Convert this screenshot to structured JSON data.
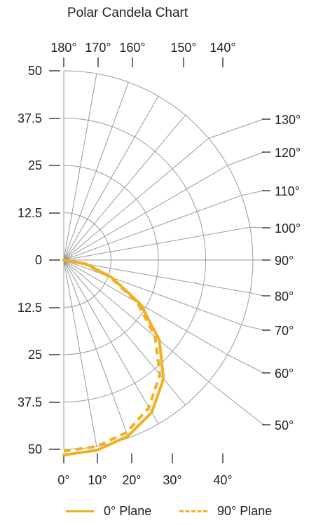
{
  "chart_data": {
    "type": "line",
    "polar": true,
    "title": "Polar Candela Chart",
    "radial_ticks": [
      {
        "label": "50",
        "r": 50
      },
      {
        "label": "37.5",
        "r": 37.5
      },
      {
        "label": "25",
        "r": 25
      },
      {
        "label": "12.5",
        "r": 12.5
      },
      {
        "label": "0",
        "r": 0
      },
      {
        "label": "12.5",
        "r": 12.5
      },
      {
        "label": "25",
        "r": 25
      },
      {
        "label": "37.5",
        "r": 37.5
      },
      {
        "label": "50",
        "r": 50
      }
    ],
    "top_angle_labels": [
      {
        "label": "180°",
        "angle": 180
      },
      {
        "label": "170°",
        "angle": 170
      },
      {
        "label": "160°",
        "angle": 160
      },
      {
        "label": "150°",
        "angle": 150
      },
      {
        "label": "140°",
        "angle": 140
      }
    ],
    "right_angle_labels": [
      {
        "label": "130°",
        "angle": 130
      },
      {
        "label": "120°",
        "angle": 120
      },
      {
        "label": "110°",
        "angle": 110
      },
      {
        "label": "100°",
        "angle": 100
      },
      {
        "label": "90°",
        "angle": 90
      },
      {
        "label": "80°",
        "angle": 80
      },
      {
        "label": "70°",
        "angle": 70
      },
      {
        "label": "60°",
        "angle": 60
      },
      {
        "label": "50°",
        "angle": 50
      }
    ],
    "bottom_angle_labels": [
      {
        "label": "0°",
        "angle": 0
      },
      {
        "label": "10°",
        "angle": 10
      },
      {
        "label": "20°",
        "angle": 20
      },
      {
        "label": "30°",
        "angle": 30
      },
      {
        "label": "40°",
        "angle": 40
      }
    ],
    "grid": true,
    "rlim": [
      0,
      50
    ],
    "series": [
      {
        "name": "0° Plane",
        "style": "solid",
        "color": "#F0B020",
        "points": [
          {
            "angle": 0,
            "value": 51.5
          },
          {
            "angle": 10,
            "value": 51
          },
          {
            "angle": 20,
            "value": 49.5
          },
          {
            "angle": 30,
            "value": 46.5
          },
          {
            "angle": 40,
            "value": 41
          },
          {
            "angle": 50,
            "value": 33
          },
          {
            "angle": 60,
            "value": 23.5
          },
          {
            "angle": 70,
            "value": 13.5
          },
          {
            "angle": 80,
            "value": 6
          },
          {
            "angle": 90,
            "value": 0
          }
        ]
      },
      {
        "name": "90° Plane",
        "style": "dashed",
        "color": "#F0B020",
        "points": [
          {
            "angle": 0,
            "value": 50.5
          },
          {
            "angle": 10,
            "value": 50
          },
          {
            "angle": 20,
            "value": 48.5
          },
          {
            "angle": 30,
            "value": 45
          },
          {
            "angle": 40,
            "value": 39.5
          },
          {
            "angle": 50,
            "value": 31.5
          },
          {
            "angle": 60,
            "value": 22.5
          },
          {
            "angle": 70,
            "value": 13
          },
          {
            "angle": 80,
            "value": 5.5
          },
          {
            "angle": 90,
            "value": 0
          }
        ]
      }
    ],
    "legend": {
      "position": "bottom"
    }
  },
  "colors": {
    "series": "#F0B020",
    "grid": "#9a9a9a",
    "text": "#222222"
  }
}
